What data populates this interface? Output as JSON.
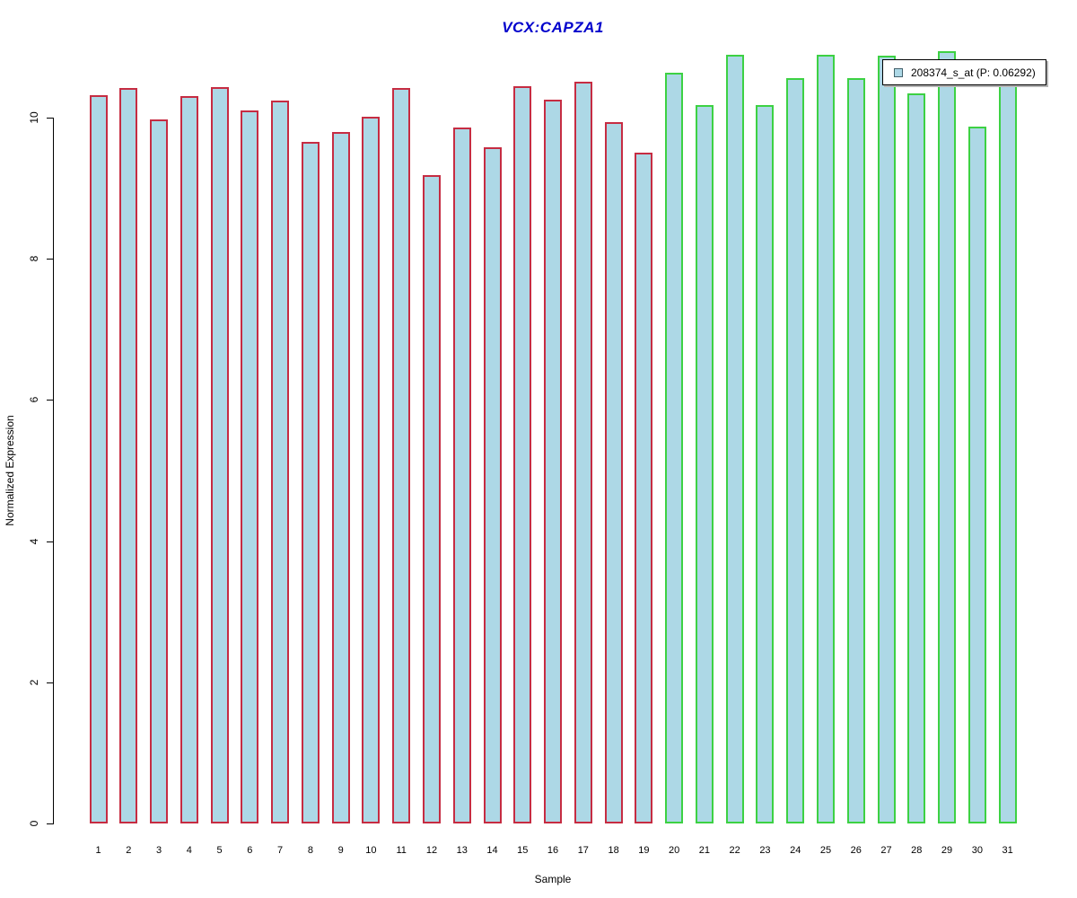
{
  "title": "VCX:CAPZA1",
  "legend": {
    "label": "208374_s_at (P: 0.06292)"
  },
  "axes": {
    "y_label": "Normalized Expression",
    "x_label": "Sample"
  },
  "colors": {
    "title_blue": "#0000CC",
    "bar_fill": "#ADD8E6",
    "group1_border_red": "#C62C42",
    "group2_border_green": "#3DD143"
  },
  "chart_data": {
    "type": "bar",
    "title": "VCX:CAPZA1",
    "xlabel": "Sample",
    "ylabel": "Normalized Expression",
    "ylim": [
      0,
      11.2
    ],
    "y_ticks": [
      0,
      2,
      4,
      6,
      8,
      10
    ],
    "grid": false,
    "legend_position": "top-right",
    "legend_label": "208374_s_at (P: 0.06292)",
    "categories": [
      "1",
      "2",
      "3",
      "4",
      "5",
      "6",
      "7",
      "8",
      "9",
      "10",
      "11",
      "12",
      "13",
      "14",
      "15",
      "16",
      "17",
      "18",
      "19",
      "20",
      "21",
      "22",
      "23",
      "24",
      "25",
      "26",
      "27",
      "28",
      "29",
      "30",
      "31"
    ],
    "series": [
      {
        "name": "208374_s_at (P: 0.06292)",
        "values": [
          10.32,
          10.42,
          9.97,
          10.31,
          10.43,
          10.1,
          10.24,
          9.66,
          9.8,
          10.01,
          10.42,
          9.19,
          9.86,
          9.58,
          10.45,
          10.25,
          10.51,
          9.94,
          9.5,
          10.64,
          10.18,
          10.89,
          10.18,
          10.56,
          10.89,
          10.56,
          10.88,
          10.34,
          10.94,
          9.87,
          10.6
        ]
      }
    ],
    "bar_fill": "#ADD8E6",
    "bar_border_colors": [
      "#C62C42",
      "#C62C42",
      "#C62C42",
      "#C62C42",
      "#C62C42",
      "#C62C42",
      "#C62C42",
      "#C62C42",
      "#C62C42",
      "#C62C42",
      "#C62C42",
      "#C62C42",
      "#C62C42",
      "#C62C42",
      "#C62C42",
      "#C62C42",
      "#C62C42",
      "#C62C42",
      "#C62C42",
      "#3DD143",
      "#3DD143",
      "#3DD143",
      "#3DD143",
      "#3DD143",
      "#3DD143",
      "#3DD143",
      "#3DD143",
      "#3DD143",
      "#3DD143",
      "#3DD143",
      "#3DD143"
    ],
    "bar_border_groups": [
      {
        "color": "#C62C42",
        "first_category": "1",
        "last_category": "19"
      },
      {
        "color": "#3DD143",
        "first_category": "20",
        "last_category": "31"
      }
    ]
  }
}
